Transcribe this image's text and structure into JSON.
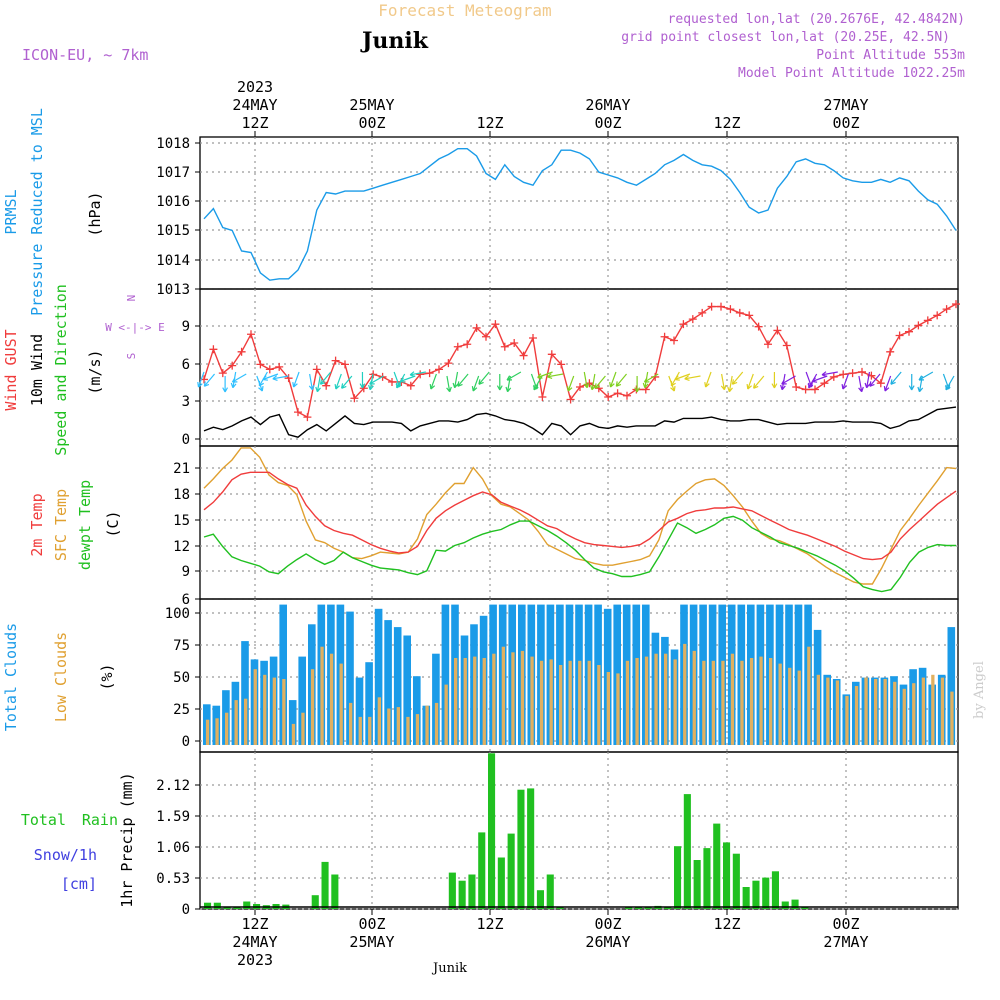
{
  "header": {
    "title": "Forecast Meteogram",
    "location": "Junik",
    "model": "ICON-EU, ~ 7km",
    "requested": "requested lon,lat (20.2676E, 42.4842N)",
    "gridpoint": "grid point closest lon,lat (20.25E, 42.5N)",
    "point_alt": "Point Altitude 553m",
    "model_alt": "Model Point Altitude 1022.25m",
    "footer_location": "Junik",
    "watermark": "by Angel"
  },
  "time_axis": {
    "top": [
      {
        "line1": "2023",
        "line2": "24MAY",
        "line3": "12Z"
      },
      {
        "line1": "",
        "line2": "25MAY",
        "line3": "00Z"
      },
      {
        "line1": "",
        "line2": "",
        "line3": "12Z"
      },
      {
        "line1": "",
        "line2": "26MAY",
        "line3": "00Z"
      },
      {
        "line1": "",
        "line2": "",
        "line3": "12Z"
      },
      {
        "line1": "",
        "line2": "27MAY",
        "line3": "00Z"
      }
    ],
    "bottom": [
      {
        "line1": "12Z",
        "line2": "24MAY",
        "line3": "2023"
      },
      {
        "line1": "00Z",
        "line2": "25MAY",
        "line3": ""
      },
      {
        "line1": "12Z",
        "line2": "",
        "line3": ""
      },
      {
        "line1": "00Z",
        "line2": "26MAY",
        "line3": ""
      },
      {
        "line1": "12Z",
        "line2": "",
        "line3": ""
      },
      {
        "line1": "00Z",
        "line2": "27MAY",
        "line3": ""
      }
    ]
  },
  "chart_data": [
    {
      "type": "line",
      "panel": "pressure",
      "ylabel_lines": [
        "PRMSL",
        "Pressure Reduced to MSL"
      ],
      "unit": "(hPa)",
      "ylim": [
        1013,
        1018.2
      ],
      "yticks": [
        "1013",
        "1014",
        "1015",
        "1016",
        "1017",
        "1018"
      ],
      "colors": {
        "line": "#1a9be8"
      },
      "series": [
        {
          "values": [
            1015.4,
            1015.75,
            1015.1,
            1015.0,
            1014.3,
            1014.25,
            1013.55,
            1013.3,
            1013.35,
            1013.35,
            1013.65,
            1014.3,
            1015.7,
            1016.3,
            1016.25,
            1016.35,
            1016.35,
            1016.35,
            1016.45,
            1016.55,
            1016.65,
            1016.75,
            1016.85,
            1016.95,
            1017.2,
            1017.45,
            1017.6,
            1017.8,
            1017.8,
            1017.55,
            1016.95,
            1016.75,
            1017.25,
            1016.85,
            1016.65,
            1016.55,
            1017.05,
            1017.25,
            1017.75,
            1017.75,
            1017.65,
            1017.45,
            1017.0,
            1016.9,
            1016.8,
            1016.65,
            1016.55,
            1016.75,
            1016.95,
            1017.25,
            1017.4,
            1017.6,
            1017.4,
            1017.25,
            1017.2,
            1017.05,
            1016.75,
            1016.3,
            1015.8,
            1015.6,
            1015.7,
            1016.45,
            1016.85,
            1017.35,
            1017.45,
            1017.3,
            1017.25,
            1017.05,
            1016.8,
            1016.7,
            1016.65,
            1016.65,
            1016.75,
            1016.65,
            1016.8,
            1016.7,
            1016.35,
            1016.05,
            1015.9,
            1015.5,
            1015.0
          ]
        }
      ]
    },
    {
      "type": "line",
      "panel": "wind",
      "ylabel_lines": [
        "Wind GUST",
        "10m Wind",
        "Speed and Direction"
      ],
      "unit": "(m/s)",
      "compass": [
        "N",
        "W <-|-> E",
        "S"
      ],
      "ylim": [
        -0.3,
        12.2
      ],
      "yticks": [
        "0",
        "3",
        "6",
        "9"
      ],
      "colors": {
        "gust": "#f03c3c",
        "speed": "#000000"
      },
      "series": [
        {
          "values": [
            5.0,
            7.4,
            5.5,
            6.1,
            7.2,
            8.6,
            6.2,
            5.8,
            6.0,
            5.1,
            2.4,
            2.0,
            5.8,
            4.5,
            6.5,
            6.2,
            3.5,
            4.3,
            5.4,
            5.2,
            4.8,
            4.8,
            4.5,
            5.4,
            5.5,
            5.8,
            6.3,
            7.6,
            7.8,
            9.1,
            8.4,
            9.4,
            7.6,
            7.9,
            6.9,
            8.3,
            3.6,
            7.0,
            6.2,
            3.4,
            4.4,
            4.7,
            4.3,
            3.6,
            3.9,
            3.7,
            4.2,
            4.2,
            5.2,
            8.4,
            8.1,
            9.4,
            9.8,
            10.3,
            10.8,
            10.8,
            10.6,
            10.3,
            10.1,
            9.2,
            7.8,
            8.9,
            7.7,
            4.4,
            4.2,
            4.2,
            4.7,
            5.2,
            5.4,
            5.5,
            5.6,
            5.3,
            4.7,
            7.2,
            8.5,
            8.8,
            9.3,
            9.7,
            10.1,
            10.6,
            11.0
          ]
        },
        {
          "values": [
            0.9,
            1.2,
            1.0,
            1.3,
            1.7,
            2.0,
            1.4,
            2.0,
            2.2,
            0.6,
            0.4,
            1.0,
            1.4,
            0.9,
            1.5,
            2.1,
            1.5,
            1.4,
            1.6,
            1.6,
            1.6,
            1.5,
            0.9,
            1.3,
            1.5,
            1.7,
            1.7,
            1.6,
            1.8,
            2.2,
            2.3,
            2.1,
            1.8,
            1.7,
            1.5,
            1.1,
            0.6,
            1.5,
            1.3,
            0.6,
            1.3,
            1.5,
            1.2,
            1.1,
            1.3,
            1.2,
            1.3,
            1.3,
            1.3,
            1.7,
            1.6,
            1.9,
            1.9,
            1.9,
            2.0,
            1.8,
            1.7,
            1.7,
            1.8,
            1.8,
            1.6,
            1.4,
            1.5,
            1.5,
            1.5,
            1.6,
            1.6,
            1.6,
            1.7,
            1.6,
            1.6,
            1.6,
            1.5,
            1.1,
            1.3,
            1.7,
            1.8,
            2.2,
            2.6,
            2.7,
            2.8
          ]
        }
      ]
    },
    {
      "type": "line",
      "panel": "temperature",
      "ylabel_lines": [
        "2m Temp",
        "SFC Temp",
        "dewpt Temp"
      ],
      "unit": "(C)",
      "ylim": [
        6.2,
        22.5
      ],
      "yticks": [
        "6",
        "9",
        "12",
        "15",
        "18",
        "21"
      ],
      "colors": {
        "t2m": "#f03c3c",
        "sfc": "#e0a030",
        "dew": "#20c020"
      },
      "series": [
        {
          "values": [
            15.7,
            16.5,
            17.6,
            18.9,
            19.5,
            19.7,
            19.7,
            19.7,
            19.0,
            18.4,
            18.0,
            16.2,
            15.0,
            14.0,
            13.5,
            13.2,
            13.0,
            12.5,
            12.0,
            11.6,
            11.3,
            11.1,
            11.2,
            11.8,
            13.5,
            14.8,
            15.6,
            16.2,
            16.7,
            17.2,
            17.6,
            17.3,
            16.5,
            16.1,
            15.7,
            15.2,
            14.6,
            14.0,
            13.7,
            13.1,
            12.6,
            12.2,
            12.0,
            11.9,
            11.8,
            11.7,
            11.8,
            12.0,
            12.6,
            13.5,
            14.4,
            14.8,
            15.3,
            15.6,
            15.7,
            15.9,
            15.9,
            16.0,
            15.8,
            15.6,
            15.1,
            14.6,
            14.1,
            13.6,
            13.3,
            13.0,
            12.6,
            12.2,
            11.8,
            11.3,
            10.9,
            10.5,
            10.4,
            10.5,
            11.2,
            12.6,
            13.6,
            14.5,
            15.4,
            16.3,
            17.0,
            17.7
          ]
        },
        {
          "values": [
            18.0,
            19.0,
            20.1,
            21.0,
            22.3,
            22.3,
            21.3,
            19.4,
            18.6,
            18.3,
            17.3,
            14.5,
            12.5,
            12.2,
            11.6,
            11.2,
            10.6,
            10.5,
            10.8,
            11.2,
            11.1,
            11.0,
            11.2,
            12.6,
            15.2,
            16.3,
            17.5,
            18.5,
            18.5,
            20.2,
            19.0,
            17.2,
            16.3,
            16.0,
            15.3,
            14.6,
            13.4,
            12.0,
            11.5,
            11.0,
            10.5,
            10.3,
            10.0,
            9.8,
            9.8,
            10.0,
            10.2,
            10.4,
            10.8,
            12.5,
            15.6,
            16.8,
            17.7,
            18.5,
            18.9,
            19.0,
            18.3,
            17.2,
            16.0,
            14.5,
            13.2,
            12.6,
            12.4,
            12.0,
            11.5,
            11.0,
            10.3,
            9.6,
            9.0,
            8.5,
            8.0,
            7.8,
            7.8,
            9.5,
            11.5,
            13.5,
            14.8,
            16.2,
            17.5,
            18.8,
            20.2,
            20.1
          ]
        },
        {
          "values": [
            12.8,
            13.1,
            11.8,
            10.7,
            10.3,
            10.0,
            9.7,
            9.1,
            8.9,
            9.7,
            10.4,
            11.0,
            10.4,
            9.9,
            10.3,
            11.2,
            10.6,
            10.2,
            9.8,
            9.5,
            9.4,
            9.3,
            9.0,
            8.8,
            9.2,
            11.4,
            11.3,
            11.9,
            12.2,
            12.7,
            13.1,
            13.4,
            13.6,
            14.1,
            14.5,
            14.5,
            14.0,
            13.5,
            12.9,
            12.2,
            11.4,
            10.4,
            9.5,
            9.1,
            8.9,
            8.6,
            8.6,
            8.8,
            9.1,
            10.7,
            12.5,
            14.3,
            13.8,
            13.2,
            13.6,
            14.1,
            14.8,
            15.0,
            14.6,
            13.8,
            13.3,
            12.8,
            12.2,
            11.9,
            11.6,
            11.2,
            10.8,
            10.3,
            9.8,
            9.2,
            8.4,
            7.5,
            7.2,
            7.0,
            7.2,
            8.5,
            10.1,
            11.2,
            11.7,
            12.0,
            11.9,
            11.9
          ]
        }
      ]
    },
    {
      "type": "bar",
      "panel": "clouds",
      "ylabel_lines": [
        "Total Clouds",
        "Low Clouds"
      ],
      "unit": "(%)",
      "ylim": [
        -5,
        104
      ],
      "yticks": [
        "0",
        "25",
        "50",
        "75",
        "100"
      ],
      "colors": {
        "total": "#1a9be8",
        "low": "#e0b060"
      },
      "series": [
        {
          "values": [
            29,
            28,
            39,
            45,
            74,
            61,
            60,
            63,
            100,
            32,
            63,
            86,
            100,
            100,
            100,
            95,
            48,
            59,
            97,
            89,
            84,
            78,
            49,
            28,
            65,
            100,
            100,
            78,
            86,
            92,
            100,
            100,
            100,
            100,
            100,
            100,
            100,
            100,
            100,
            100,
            100,
            100,
            97,
            100,
            100,
            100,
            100,
            80,
            77,
            68,
            100,
            100,
            100,
            100,
            100,
            100,
            100,
            100,
            100,
            100,
            100,
            100,
            100,
            100,
            82,
            50,
            47,
            36,
            45,
            48,
            48,
            48,
            49,
            43,
            54,
            55,
            43,
            50,
            84
          ]
        },
        {
          "values": [
            18,
            19,
            23,
            32,
            33,
            54,
            50,
            48,
            47,
            15,
            23,
            54,
            70,
            65,
            58,
            30,
            20,
            20,
            34,
            26,
            27,
            20,
            22,
            28,
            30,
            43,
            62,
            62,
            63,
            62,
            65,
            70,
            66,
            67,
            63,
            60,
            61,
            57,
            60,
            60,
            60,
            57,
            52,
            51,
            60,
            62,
            63,
            65,
            65,
            61,
            72,
            67,
            60,
            60,
            60,
            65,
            60,
            62,
            63,
            62,
            58,
            55,
            53,
            70,
            50,
            48,
            46,
            35,
            42,
            48,
            47,
            47,
            45,
            40,
            44,
            48,
            50,
            48,
            38
          ]
        }
      ]
    },
    {
      "type": "bar",
      "panel": "precipitation",
      "ylabel_lines": [
        "Total Rain",
        "Snow/1h",
        "[cm]"
      ],
      "unit": "1hr Precip (mm)",
      "ylim": [
        0,
        2.5
      ],
      "yticks": [
        "0",
        "0.53",
        "1.06",
        "1.59",
        "2.12"
      ],
      "colors": {
        "rain": "#20c020",
        "snow": "#4040e0"
      },
      "series": [
        {
          "values": [
            0.1,
            0.1,
            0.04,
            0.04,
            0.12,
            0.08,
            0.06,
            0.08,
            0.07,
            0,
            0,
            0.22,
            0.75,
            0.55,
            0,
            0,
            0,
            0,
            0,
            0,
            0,
            0,
            0,
            0,
            0,
            0.58,
            0.45,
            0.55,
            1.22,
            2.48,
            0.82,
            1.2,
            1.9,
            1.92,
            0.3,
            0.55,
            0.04,
            0,
            0,
            0,
            0,
            0,
            0,
            0.03,
            0.04,
            0.04,
            0.05,
            0.04,
            1.0,
            1.83,
            0.78,
            0.97,
            1.36,
            1.06,
            0.88,
            0.35,
            0.45,
            0.5,
            0.6,
            0.12,
            0.15,
            0.03,
            0,
            0,
            0,
            0,
            0,
            0,
            0,
            0,
            0,
            0,
            0,
            0,
            0,
            0,
            0
          ]
        }
      ]
    }
  ]
}
